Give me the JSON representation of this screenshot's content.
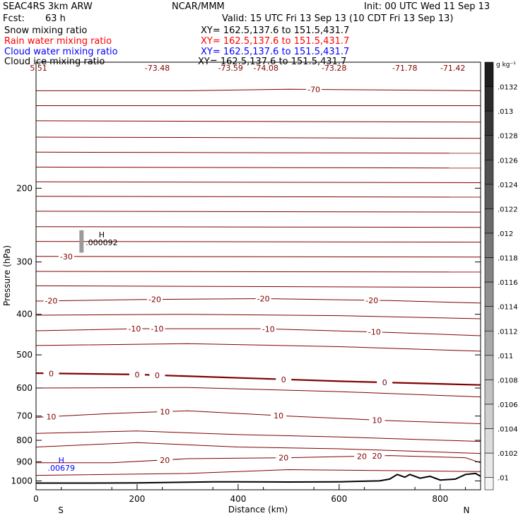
{
  "header": {
    "model": "SEAC4RS  3km ARW",
    "org": "NCAR/MMM",
    "init": "Init: 00 UTC Wed 11 Sep 13",
    "fcst_label": "Fcst:",
    "fcst_value": "63 h",
    "valid": "Valid: 15 UTC Fri 13 Sep 13 (10 CDT Fri 13 Sep 13)",
    "fields": [
      {
        "name": "Snow mixing ratio",
        "xy": "XY= 162.5,137.6 to 151.5,431.7",
        "color": "#000000"
      },
      {
        "name": "Rain water mixing ratio",
        "xy": "XY= 162.5,137.6 to 151.5,431.7",
        "color": "#ff0000"
      },
      {
        "name": "Cloud water mixing ratio",
        "xy": "XY= 162.5,137.6 to 151.5,431.7",
        "color": "#0000ff"
      },
      {
        "name": "Cloud ice mixing ratio",
        "xy": "XY= 162.5,137.6 to 151.5,431.7",
        "color": "#000000"
      }
    ]
  },
  "colorbar": {
    "unit": "g kg⁻¹",
    "labels": [
      ".0132",
      ".013",
      ".0128",
      ".0126",
      ".0124",
      ".0122",
      ".012",
      ".0118",
      ".0116",
      ".0114",
      ".0112",
      ".011",
      ".0108",
      ".0106",
      ".0104",
      ".0102",
      ".01"
    ]
  },
  "chart_data": {
    "type": "line",
    "xlabel": "Distance (km)",
    "ylabel": "Pressure (hPa)",
    "xlim": [
      0,
      880
    ],
    "ylim": [
      1050,
      100
    ],
    "y_scale": "log",
    "x_ticks": [
      0,
      200,
      400,
      600,
      800
    ],
    "y_ticks": [
      200,
      300,
      400,
      500,
      600,
      700,
      800,
      900,
      1000
    ],
    "end_labels": {
      "left": "S",
      "right": "N"
    },
    "top_edge_labels": [
      {
        "x": 5,
        "text": "5.51"
      },
      {
        "x": 240,
        "text": "-73.48"
      },
      {
        "x": 385,
        "text": "-73.59"
      },
      {
        "x": 455,
        "text": "-74.08"
      },
      {
        "x": 590,
        "text": "-73.28"
      },
      {
        "x": 730,
        "text": "-71.78"
      },
      {
        "x": 825,
        "text": "-71.42"
      }
    ],
    "isotherm_color": "#800000",
    "isotherms": [
      {
        "name": "-70",
        "p": [
          [
            0,
            117
          ],
          [
            300,
            117
          ],
          [
            500,
            116
          ],
          [
            880,
            117
          ]
        ],
        "labels": [
          [
            550,
            -70
          ]
        ]
      },
      {
        "name": "i1",
        "p": [
          [
            0,
            127
          ],
          [
            880,
            127
          ]
        ],
        "labels": []
      },
      {
        "name": "i2",
        "p": [
          [
            0,
            138
          ],
          [
            880,
            139
          ]
        ],
        "labels": []
      },
      {
        "name": "i3",
        "p": [
          [
            0,
            151
          ],
          [
            880,
            152
          ]
        ],
        "labels": []
      },
      {
        "name": "i4",
        "p": [
          [
            0,
            164
          ],
          [
            880,
            165
          ]
        ],
        "labels": []
      },
      {
        "name": "i5",
        "p": [
          [
            0,
            178
          ],
          [
            880,
            179
          ]
        ],
        "labels": []
      },
      {
        "name": "i6",
        "p": [
          [
            0,
            193
          ],
          [
            880,
            194
          ]
        ],
        "labels": []
      },
      {
        "name": "i7",
        "p": [
          [
            0,
            209
          ],
          [
            880,
            210
          ]
        ],
        "labels": []
      },
      {
        "name": "i8",
        "p": [
          [
            0,
            227
          ],
          [
            880,
            228
          ]
        ],
        "labels": []
      },
      {
        "name": "i9",
        "p": [
          [
            0,
            247
          ],
          [
            880,
            248
          ]
        ],
        "labels": []
      },
      {
        "name": "i10",
        "p": [
          [
            0,
            268
          ],
          [
            880,
            269
          ]
        ],
        "labels": []
      },
      {
        "name": "-30",
        "p": [
          [
            0,
            291
          ],
          [
            880,
            292
          ]
        ],
        "labels": [
          [
            60,
            -30
          ]
        ]
      },
      {
        "name": "i12",
        "p": [
          [
            0,
            316
          ],
          [
            880,
            317
          ]
        ],
        "labels": []
      },
      {
        "name": "i13",
        "p": [
          [
            0,
            342
          ],
          [
            880,
            345
          ]
        ],
        "labels": []
      },
      {
        "name": "-20",
        "p": [
          [
            0,
            372
          ],
          [
            200,
            369
          ],
          [
            450,
            367
          ],
          [
            700,
            371
          ],
          [
            880,
            376
          ]
        ],
        "labels": [
          [
            30,
            -20
          ],
          [
            235,
            -20
          ],
          [
            450,
            -20
          ],
          [
            665,
            -20
          ]
        ]
      },
      {
        "name": "i15",
        "p": [
          [
            0,
            402
          ],
          [
            300,
            400
          ],
          [
            600,
            403
          ],
          [
            880,
            410
          ]
        ],
        "labels": []
      },
      {
        "name": "-10",
        "p": [
          [
            0,
            438
          ],
          [
            200,
            433
          ],
          [
            450,
            433
          ],
          [
            700,
            442
          ],
          [
            880,
            450
          ]
        ],
        "labels": [
          [
            195,
            -10
          ],
          [
            240,
            -10
          ],
          [
            460,
            -10
          ],
          [
            670,
            -10
          ]
        ]
      },
      {
        "name": "i17",
        "p": [
          [
            0,
            475
          ],
          [
            300,
            470
          ],
          [
            600,
            478
          ],
          [
            880,
            490
          ]
        ],
        "labels": []
      },
      {
        "name": "0",
        "p": [
          [
            0,
            553
          ],
          [
            200,
            557
          ],
          [
            450,
            570
          ],
          [
            600,
            578
          ],
          [
            880,
            590
          ]
        ],
        "labels": [
          [
            30,
            0
          ],
          [
            200,
            0
          ],
          [
            240,
            0
          ],
          [
            490,
            0
          ],
          [
            690,
            0
          ]
        ]
      },
      {
        "name": "i19",
        "p": [
          [
            0,
            600
          ],
          [
            300,
            598
          ],
          [
            600,
            612
          ],
          [
            880,
            630
          ]
        ],
        "labels": []
      },
      {
        "name": "10",
        "p": [
          [
            0,
            705
          ],
          [
            150,
            690
          ],
          [
            300,
            680
          ],
          [
            500,
            700
          ],
          [
            700,
            718
          ],
          [
            880,
            730
          ]
        ],
        "labels": [
          [
            30,
            10
          ],
          [
            255,
            10
          ],
          [
            480,
            10
          ],
          [
            675,
            10
          ]
        ]
      },
      {
        "name": "i21",
        "p": [
          [
            0,
            770
          ],
          [
            200,
            760
          ],
          [
            400,
            775
          ],
          [
            600,
            785
          ],
          [
            880,
            805
          ]
        ],
        "labels": []
      },
      {
        "name": "i22",
        "p": [
          [
            0,
            830
          ],
          [
            200,
            810
          ],
          [
            400,
            830
          ],
          [
            600,
            838
          ],
          [
            880,
            860
          ]
        ],
        "labels": []
      },
      {
        "name": "20",
        "p": [
          [
            0,
            905
          ],
          [
            150,
            905
          ],
          [
            300,
            885
          ],
          [
            500,
            880
          ],
          [
            700,
            870
          ],
          [
            850,
            880
          ],
          [
            880,
            905
          ]
        ],
        "labels": [
          [
            255,
            20
          ],
          [
            490,
            20
          ],
          [
            645,
            20
          ],
          [
            675,
            20
          ]
        ]
      },
      {
        "name": "i24",
        "p": [
          [
            0,
            970
          ],
          [
            300,
            960
          ],
          [
            500,
            940
          ],
          [
            700,
            945
          ],
          [
            880,
            950
          ]
        ],
        "labels": []
      }
    ],
    "terrain_pressure": [
      [
        0,
        1012
      ],
      [
        100,
        1012
      ],
      [
        200,
        1011
      ],
      [
        300,
        1007
      ],
      [
        350,
        1005
      ],
      [
        400,
        1005
      ],
      [
        500,
        1006
      ],
      [
        600,
        1005
      ],
      [
        680,
        1000
      ],
      [
        700,
        990
      ],
      [
        715,
        965
      ],
      [
        730,
        980
      ],
      [
        740,
        965
      ],
      [
        760,
        985
      ],
      [
        780,
        975
      ],
      [
        800,
        995
      ],
      [
        830,
        990
      ],
      [
        850,
        965
      ],
      [
        870,
        960
      ],
      [
        880,
        975
      ]
    ],
    "maxima": [
      {
        "label": "H",
        "value": ".000092",
        "x": 130,
        "p": 262,
        "color": "#000000"
      },
      {
        "label": "H",
        "value": ".00679",
        "x": 50,
        "p": 905,
        "color": "#0000ff"
      }
    ],
    "ice_cloud": {
      "x": 90,
      "p_top": 252,
      "p_bottom": 285
    }
  }
}
